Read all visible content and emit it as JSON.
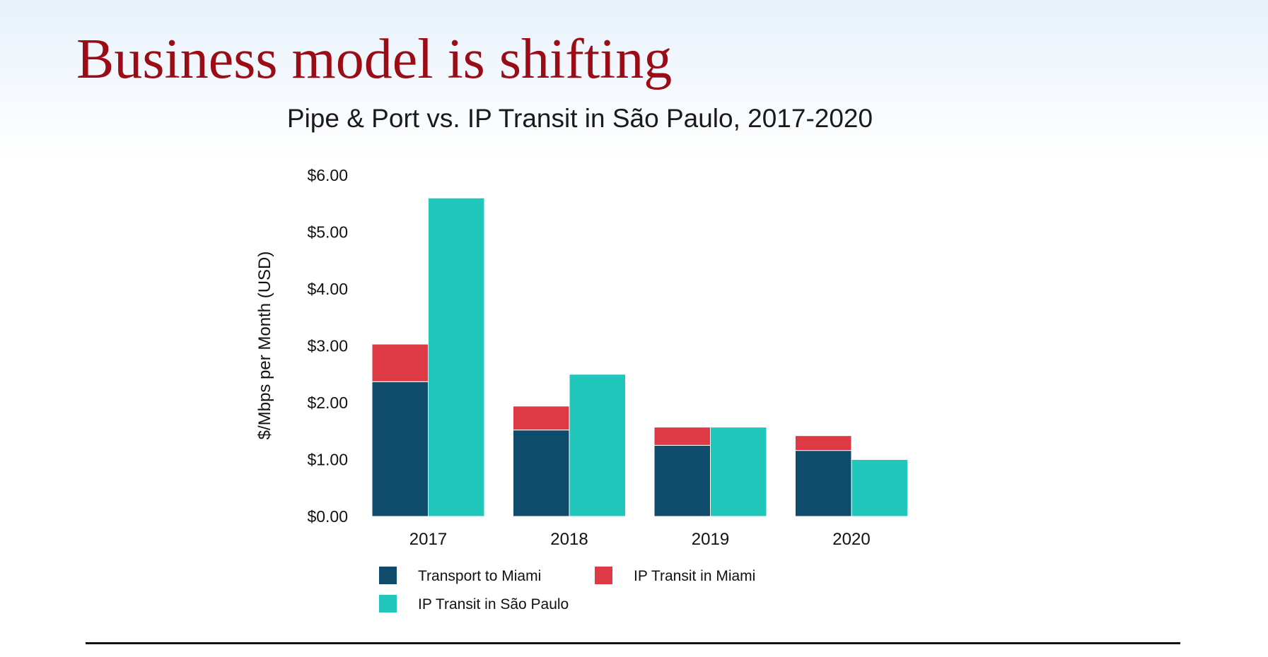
{
  "slide": {
    "title": "Business model is shifting"
  },
  "chart_data": {
    "type": "bar",
    "stacked_groups": true,
    "title": "Pipe & Port vs. IP Transit in São Paulo, 2017-2020",
    "xlabel": "",
    "ylabel": "$/Mbps per Month (USD)",
    "ylim": [
      0,
      6
    ],
    "yticks": [
      0,
      1,
      2,
      3,
      4,
      5,
      6
    ],
    "ytick_labels": [
      "$0.00",
      "$1.00",
      "$2.00",
      "$3.00",
      "$4.00",
      "$5.00",
      "$6.00"
    ],
    "categories": [
      "2017",
      "2018",
      "2019",
      "2020"
    ],
    "grid": false,
    "legend_position": "bottom",
    "series": [
      {
        "name": "Transport to Miami",
        "stack": "pipe-port",
        "color": "#0f4c6b",
        "values": [
          2.37,
          1.52,
          1.25,
          1.16
        ]
      },
      {
        "name": "IP Transit in Miami",
        "stack": "pipe-port",
        "color": "#dd3a45",
        "values": [
          0.66,
          0.42,
          0.32,
          0.26
        ]
      },
      {
        "name": "IP Transit in São Paulo",
        "stack": "sao-paulo",
        "color": "#22c7bc",
        "values": [
          5.6,
          2.5,
          1.57,
          1.0
        ]
      }
    ]
  }
}
